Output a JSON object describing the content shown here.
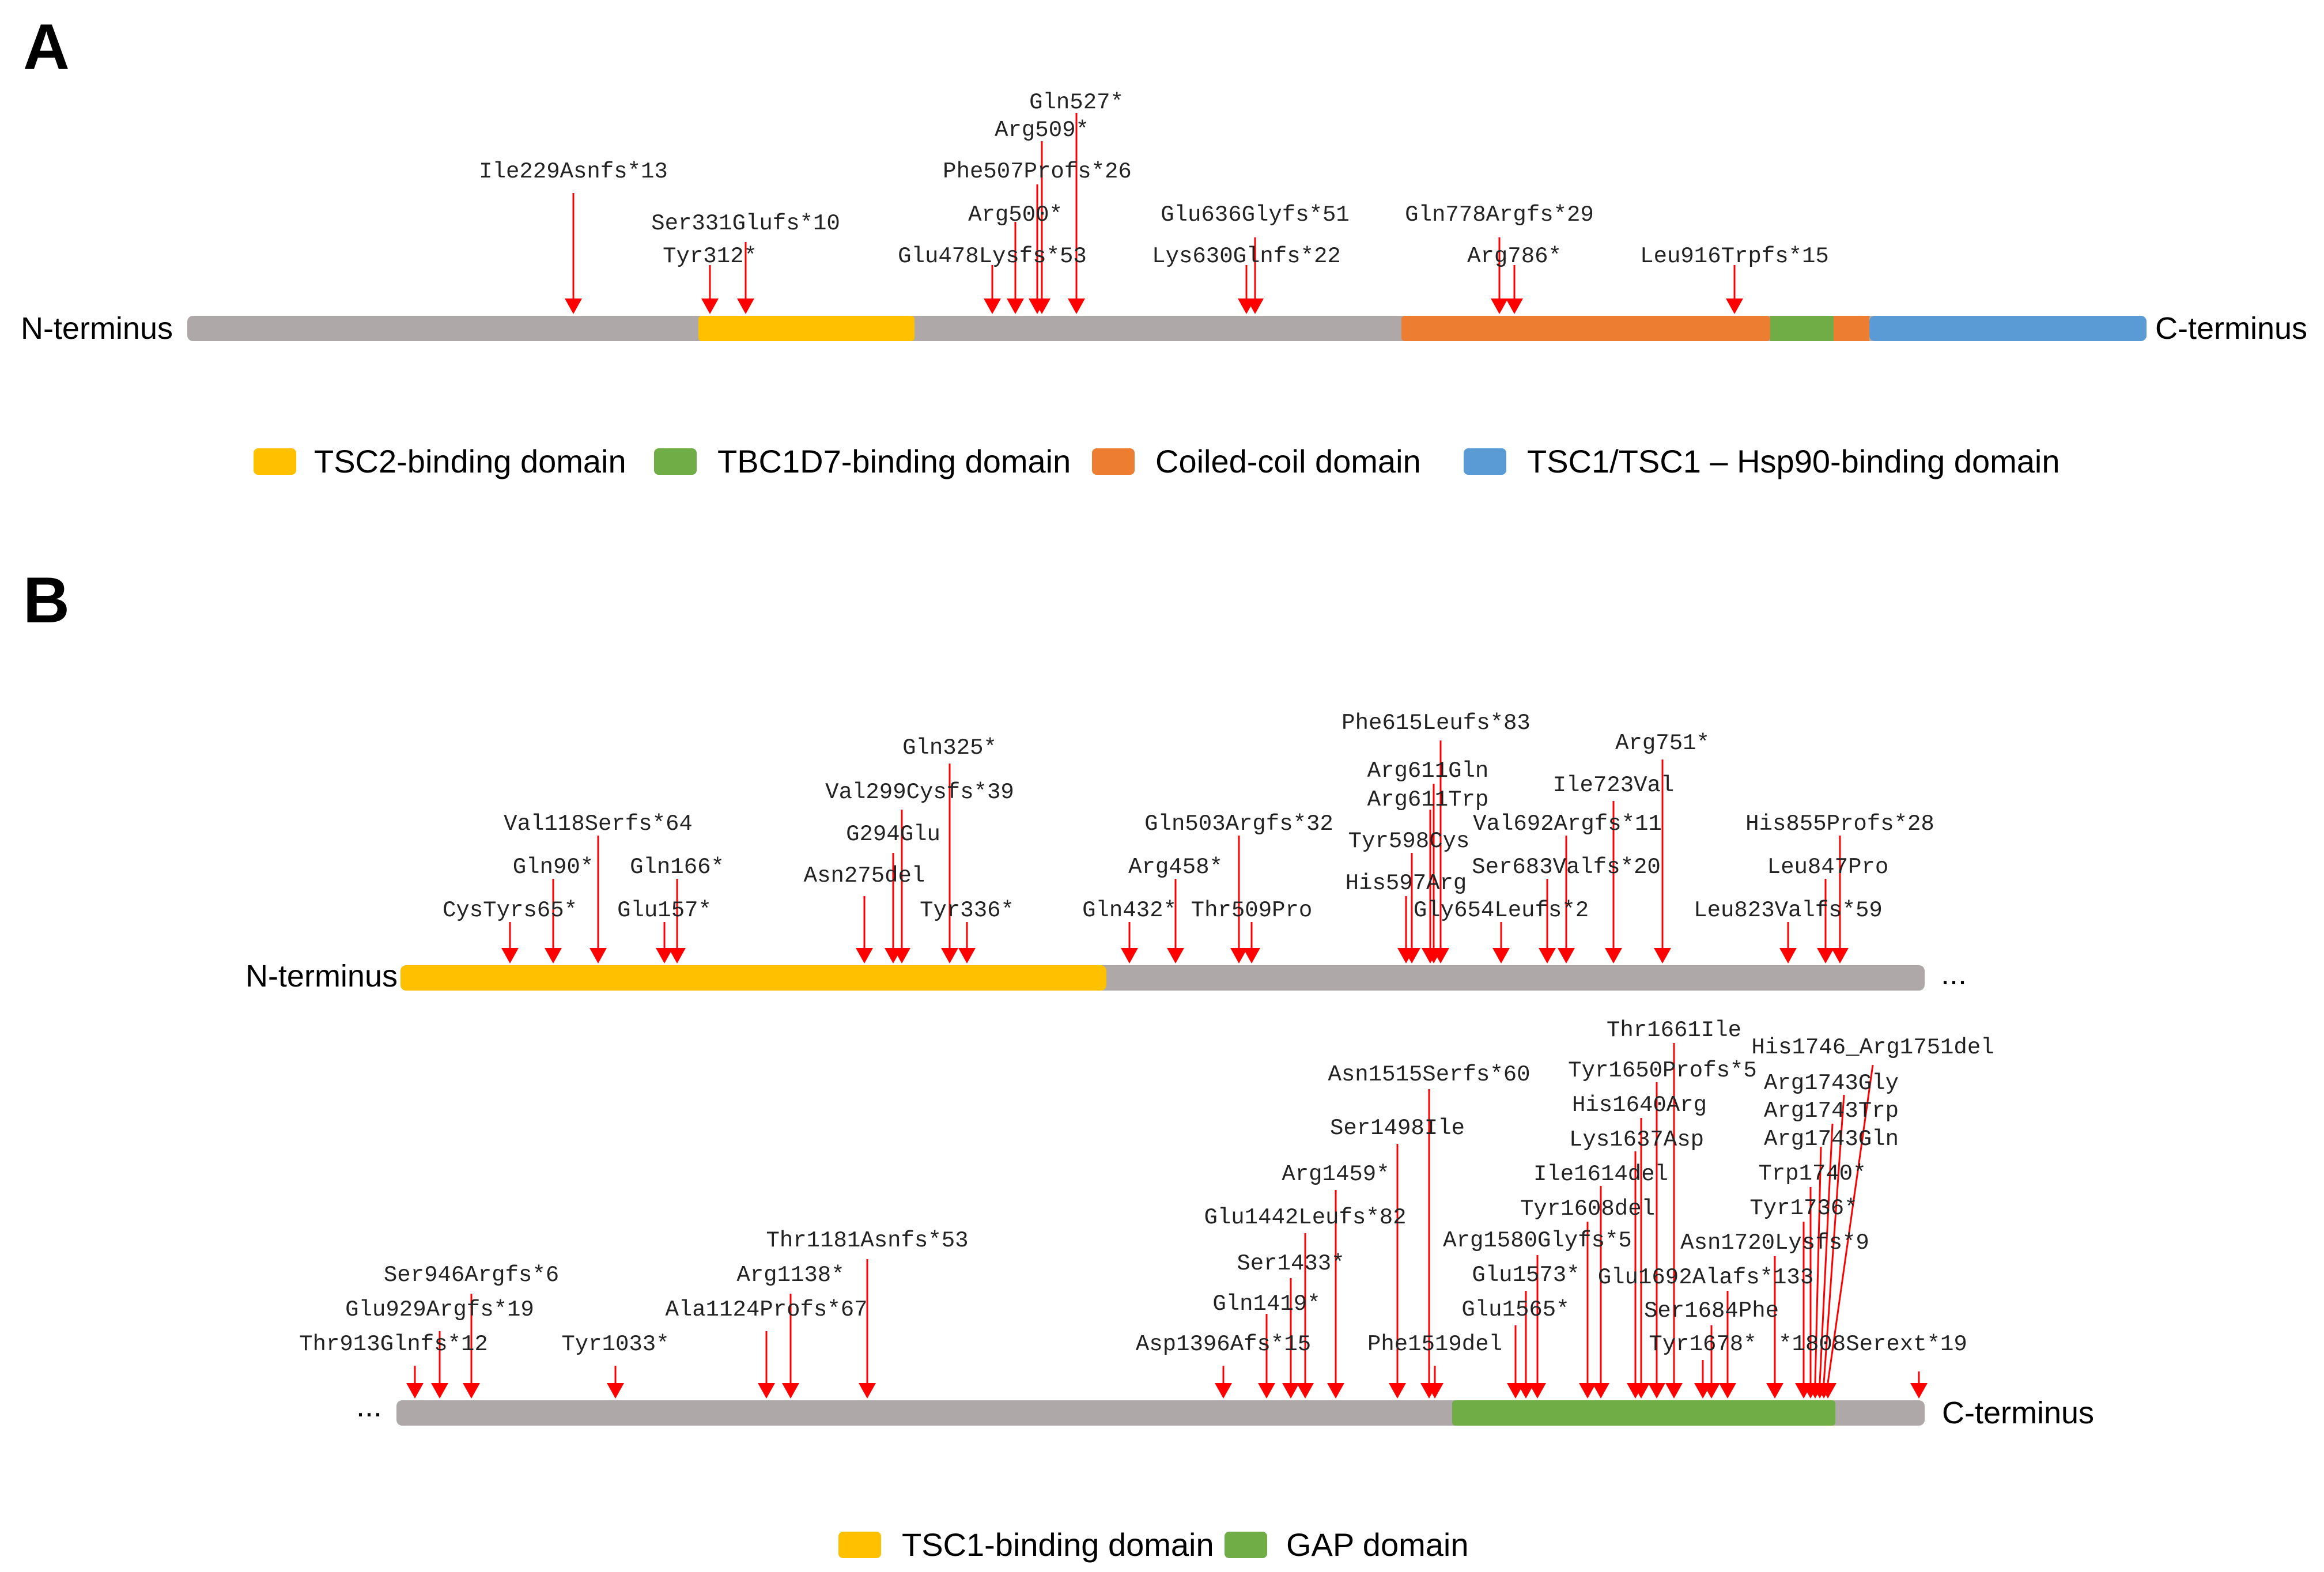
{
  "colors": {
    "backbone": "#AEA9A8",
    "tsc2_binding": "#FFC000",
    "tbc1d7_binding": "#70AD47",
    "coiled_coil": "#ED7D31",
    "hsp90_binding": "#5B9BD5",
    "tsc1_binding": "#FFC000",
    "gap": "#70AD47",
    "arrow": "#FF0000"
  },
  "panel_a": {
    "letter": "A",
    "n_label": "N-terminus",
    "c_label": "C-terminus",
    "legend": [
      {
        "label": "TSC2-binding domain",
        "color": "#FFC000"
      },
      {
        "label": "TBC1D7-binding domain",
        "color": "#70AD47"
      },
      {
        "label": "Coiled-coil domain",
        "color": "#ED7D31"
      },
      {
        "label": "TSC1/TSC1 – Hsp90-binding domain",
        "color": "#5B9BD5"
      }
    ],
    "mutations": [
      "Ile229Asnfs*13",
      "Ser331Glufs*10",
      "Tyr312*",
      "Gln527*",
      "Arg509*",
      "Phe507Profs*26",
      "Arg500*",
      "Glu478Lysfs*53",
      "Glu636Glyfs*51",
      "Lys630Glnfs*22",
      "Gln778Argfs*29",
      "Arg786*",
      "Leu916Trpfs*15"
    ]
  },
  "panel_b": {
    "letter": "B",
    "n_label": "N-terminus",
    "c_label": "C-terminus",
    "continue_mark": "...",
    "legend": [
      {
        "label": "TSC1-binding domain",
        "color": "#FFC000"
      },
      {
        "label": "GAP domain",
        "color": "#70AD47"
      }
    ],
    "mutations_row1": [
      "CysTyrs65*",
      "Gln90*",
      "Val118Serfs*64",
      "Glu157*",
      "Gln166*",
      "Asn275del",
      "G294Glu",
      "Val299Cysfs*39",
      "Gln325*",
      "Tyr336*",
      "Gln432*",
      "Arg458*",
      "Gln503Argfs*32",
      "Thr509Pro",
      "His597Arg",
      "Tyr598Cys",
      "Arg611Trp",
      "Arg611Gln",
      "Phe615Leufs*83",
      "Gly654Leufs*2",
      "Ser683Valfs*20",
      "Val692Argfs*11",
      "Ile723Val",
      "Arg751*",
      "Leu823Valfs*59",
      "Leu847Pro",
      "His855Profs*28"
    ],
    "mutations_row2": [
      "Thr913Glnfs*12",
      "Glu929Argfs*19",
      "Ser946Argfs*6",
      "Tyr1033*",
      "Ala1124Profs*67",
      "Arg1138*",
      "Thr1181Asnfs*53",
      "Asp1396Afs*15",
      "Gln1419*",
      "Ser1433*",
      "Glu1442Leufs*82",
      "Arg1459*",
      "Ser1498Ile",
      "Asn1515Serfs*60",
      "Phe1519del",
      "Glu1565*",
      "Glu1573*",
      "Arg1580Glyfs*5",
      "Tyr1608del",
      "Ile1614del",
      "Lys1637Asp",
      "His1640Arg",
      "Tyr1650Profs*5",
      "Thr1661Ile",
      "Tyr1678*",
      "Ser1684Phe",
      "Glu1692Alafs*133",
      "Asn1720Lysfs*9",
      "Tyr1736*",
      "Trp1740*",
      "Arg1743Gln",
      "Arg1743Trp",
      "Arg1743Gly",
      "His1746_Arg1751del",
      "*1808Serext*19"
    ]
  }
}
